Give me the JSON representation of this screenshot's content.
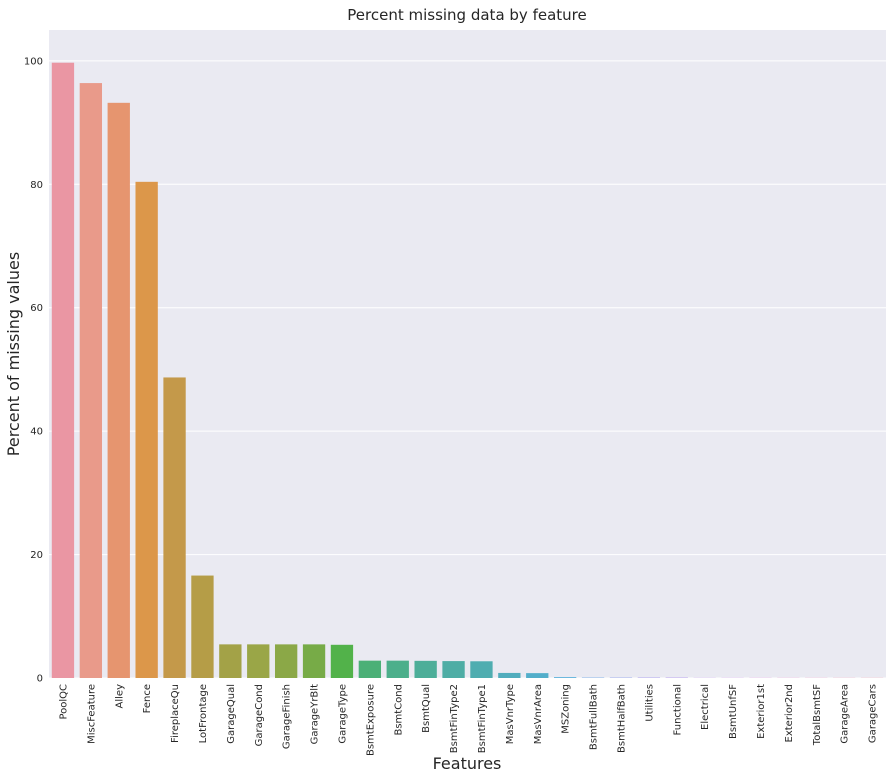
{
  "chart_data": {
    "type": "bar",
    "title": "Percent missing data by feature",
    "xlabel": "Features",
    "ylabel": "Percent of missing values",
    "ylim": [
      0,
      105
    ],
    "yticks": [
      0,
      20,
      40,
      60,
      80,
      100
    ],
    "grid": true,
    "categories": [
      "PoolQC",
      "MiscFeature",
      "Alley",
      "Fence",
      "FireplaceQu",
      "LotFrontage",
      "GarageQual",
      "GarageCond",
      "GarageFinish",
      "GarageYrBlt",
      "GarageType",
      "BsmtExposure",
      "BsmtCond",
      "BsmtQual",
      "BsmtFinType2",
      "BsmtFinType1",
      "MasVnrType",
      "MasVnrArea",
      "MSZoning",
      "BsmtFullBath",
      "BsmtHalfBath",
      "Utilities",
      "Functional",
      "Electrical",
      "BsmtUnfSF",
      "Exterior1st",
      "Exterior2nd",
      "TotalBsmtSF",
      "GarageArea",
      "GarageCars"
    ],
    "values": [
      99.7,
      96.4,
      93.2,
      80.4,
      48.7,
      16.6,
      5.45,
      5.45,
      5.45,
      5.45,
      5.38,
      2.81,
      2.81,
      2.78,
      2.74,
      2.71,
      0.82,
      0.79,
      0.14,
      0.07,
      0.07,
      0.07,
      0.07,
      0.03,
      0.03,
      0.03,
      0.03,
      0.03,
      0.03,
      0.03
    ],
    "colors": [
      "#ea96a3",
      "#e99a8a",
      "#e6956f",
      "#dc974a",
      "#c4994a",
      "#b59d47",
      "#a3a247",
      "#9aa647",
      "#8ba847",
      "#77ab47",
      "#52b24a",
      "#4bb077",
      "#4caf8b",
      "#4dae99",
      "#4eada5",
      "#4fadb0",
      "#51adbd",
      "#53aeca",
      "#5ab0da",
      "#7bb0e9",
      "#99a8ee",
      "#a99df0",
      "#b79cf0",
      "#c79ef0",
      "#d598ee",
      "#e08fe2",
      "#e996d3",
      "#eb97c3",
      "#ec98b6",
      "#ec99aa"
    ]
  }
}
